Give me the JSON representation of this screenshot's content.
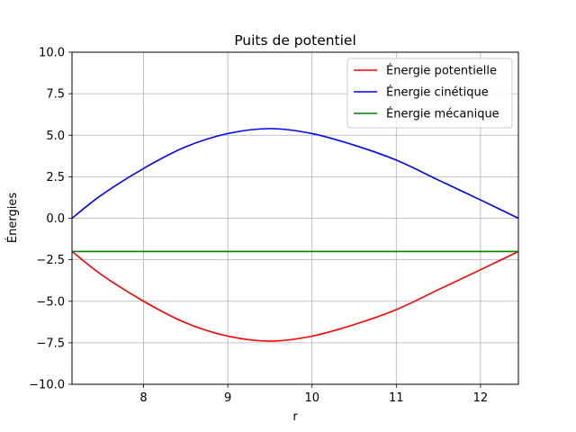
{
  "chart_data": {
    "type": "line",
    "title": "Puits de potentiel",
    "xlabel": "r",
    "ylabel": "Énergies",
    "xlim": [
      7.15,
      12.45
    ],
    "ylim": [
      -10,
      10
    ],
    "xticks": [
      8,
      9,
      10,
      11,
      12
    ],
    "yticks": [
      -10.0,
      -7.5,
      -5.0,
      -2.5,
      0.0,
      2.5,
      5.0,
      7.5,
      10.0
    ],
    "xtick_labels": [
      "8",
      "9",
      "10",
      "11",
      "12"
    ],
    "ytick_labels": [
      "−10.0",
      "−7.5",
      "−5.0",
      "−2.5",
      "0.0",
      "2.5",
      "5.0",
      "7.5",
      "10.0"
    ],
    "grid": true,
    "legend_position": "top-right",
    "series": [
      {
        "name": "Énergie potentielle",
        "color": "#ff0000",
        "x": [
          7.15,
          7.5,
          8.0,
          8.5,
          9.0,
          9.5,
          10.0,
          10.5,
          11.0,
          11.5,
          12.0,
          12.45
        ],
        "y": [
          -2.0,
          -3.4,
          -5.0,
          -6.3,
          -7.1,
          -7.4,
          -7.1,
          -6.4,
          -5.5,
          -4.3,
          -3.1,
          -2.0
        ]
      },
      {
        "name": "Énergie cinétique",
        "color": "#0000ff",
        "x": [
          7.15,
          7.5,
          8.0,
          8.5,
          9.0,
          9.5,
          10.0,
          10.5,
          11.0,
          11.5,
          12.0,
          12.45
        ],
        "y": [
          0.0,
          1.4,
          3.0,
          4.3,
          5.1,
          5.4,
          5.1,
          4.4,
          3.5,
          2.3,
          1.1,
          0.0
        ]
      },
      {
        "name": "Énergie mécanique",
        "color": "#008000",
        "x": [
          7.15,
          12.45
        ],
        "y": [
          -2.0,
          -2.0
        ]
      }
    ]
  }
}
